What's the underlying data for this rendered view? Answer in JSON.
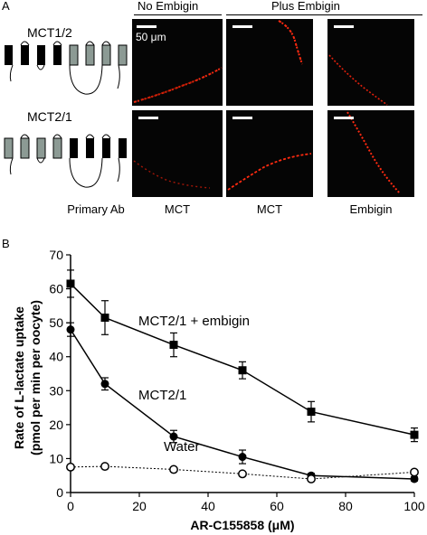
{
  "figure": {
    "panel_a_label": "A",
    "panel_b_label": "B",
    "headers": {
      "no_embigin": "No Embigin",
      "plus_embigin": "Plus Embigin"
    },
    "constructs": [
      {
        "label": "MCT1/2"
      },
      {
        "label": "MCT2/1"
      }
    ],
    "scale_label": "50 μm",
    "primary_ab_label": "Primary Ab",
    "column_labels": [
      "MCT",
      "MCT",
      "Embigin"
    ],
    "colors": {
      "dark_segment": "#000000",
      "light_segment": "#8c9a94",
      "stain": "#ff2a10",
      "micrograph_bg": "#050505"
    }
  },
  "chart_data": {
    "type": "line",
    "xlabel": "AR-C155858 (μM)",
    "ylabel": "Rate of L-lactate uptake",
    "ylabel2": "(pmol per min per oocyte)",
    "xlim": [
      0,
      100
    ],
    "ylim": [
      0,
      70
    ],
    "xticks": [
      0,
      20,
      40,
      60,
      80,
      100
    ],
    "yticks": [
      0,
      10,
      20,
      30,
      40,
      50,
      60,
      70
    ],
    "series": [
      {
        "name": "MCT2/1 + embigin",
        "marker": "filled-square",
        "line": "solid",
        "x": [
          0,
          10,
          30,
          50,
          70,
          100
        ],
        "y": [
          61.5,
          51.5,
          43.5,
          36,
          23.8,
          17
        ],
        "err": [
          4,
          5,
          3.5,
          2.5,
          3,
          2
        ]
      },
      {
        "name": "MCT2/1",
        "marker": "filled-circle",
        "line": "solid",
        "x": [
          0,
          10,
          30,
          50,
          70,
          100
        ],
        "y": [
          48,
          32,
          16.5,
          10.5,
          5,
          4
        ],
        "err": [
          2,
          1.8,
          1.8,
          2,
          0.6,
          0.6
        ]
      },
      {
        "name": "Water",
        "marker": "open-circle",
        "line": "dotted",
        "x": [
          0,
          10,
          30,
          50,
          70,
          100
        ],
        "y": [
          7.5,
          7.7,
          6.8,
          5.5,
          4,
          6
        ],
        "err": [
          0,
          0,
          0,
          0,
          0,
          0
        ]
      }
    ]
  }
}
